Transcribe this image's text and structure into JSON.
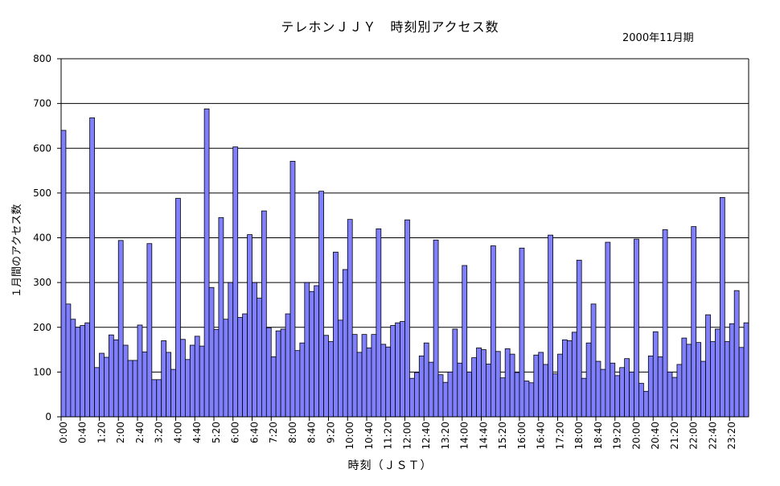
{
  "chart_data": {
    "type": "bar",
    "title": "テレホンＪＪＹ　時刻別アクセス数",
    "subtitle": "2000年11月期",
    "xlabel": "時刻（ＪＳＴ）",
    "ylabel": "１月間のアクセス数",
    "ylim": [
      0,
      800
    ],
    "yticks": [
      0,
      100,
      200,
      300,
      400,
      500,
      600,
      700,
      800
    ],
    "bar_color": "#8080ff",
    "interval_minutes": 10,
    "x_tick_labels": [
      "0:00",
      "0:40",
      "1:20",
      "2:00",
      "2:40",
      "3:20",
      "4:00",
      "4:40",
      "5:20",
      "6:00",
      "6:40",
      "7:20",
      "8:00",
      "8:40",
      "9:20",
      "10:00",
      "10:40",
      "11:20",
      "12:00",
      "12:40",
      "13:20",
      "14:00",
      "14:40",
      "15:20",
      "16:00",
      "16:40",
      "17:20",
      "18:00",
      "18:40",
      "19:20",
      "20:00",
      "20:40",
      "21:20",
      "22:00",
      "22:40",
      "23:20"
    ],
    "values": [
      640,
      252,
      218,
      200,
      204,
      210,
      668,
      110,
      142,
      133,
      183,
      172,
      394,
      160,
      126,
      126,
      205,
      145,
      387,
      83,
      83,
      170,
      144,
      106,
      488,
      173,
      128,
      160,
      180,
      158,
      688,
      289,
      195,
      445,
      218,
      300,
      603,
      222,
      230,
      407,
      300,
      265,
      460,
      199,
      134,
      192,
      196,
      230,
      571,
      148,
      165,
      300,
      280,
      293,
      504,
      182,
      168,
      368,
      216,
      329,
      441,
      184,
      144,
      184,
      154,
      184,
      420,
      162,
      156,
      204,
      210,
      213,
      440,
      86,
      99,
      136,
      165,
      122,
      395,
      94,
      77,
      100,
      196,
      120,
      338,
      100,
      132,
      154,
      150,
      118,
      382,
      146,
      87,
      152,
      140,
      99,
      377,
      80,
      76,
      138,
      144,
      117,
      406,
      96,
      140,
      172,
      170,
      189,
      350,
      86,
      165,
      252,
      124,
      106,
      390,
      120,
      92,
      110,
      130,
      100,
      397,
      75,
      57,
      136,
      190,
      134,
      418,
      100,
      88,
      117,
      176,
      162,
      425,
      166,
      124,
      228,
      168,
      196,
      490,
      168,
      208,
      282,
      155,
      210
    ]
  }
}
